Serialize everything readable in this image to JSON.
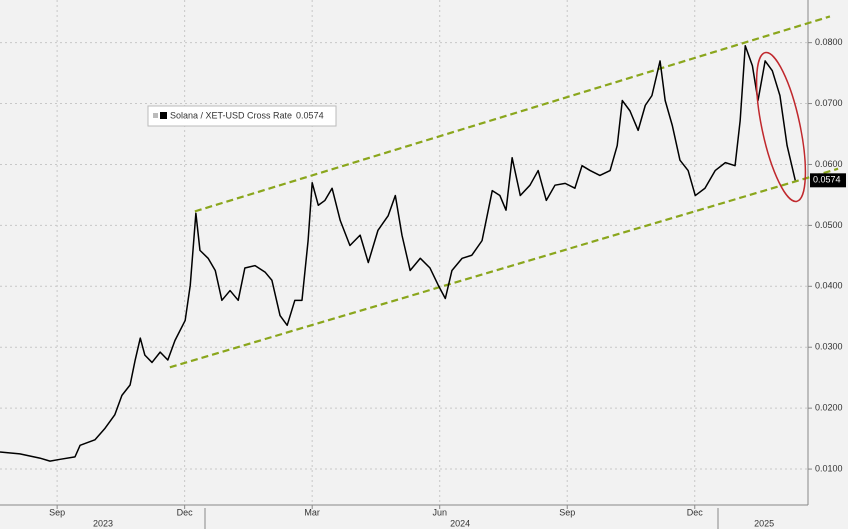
{
  "chart_data": {
    "type": "line",
    "series": [
      {
        "name": "Solana / XET-USD Cross Rate",
        "color": "#000000",
        "x": [
          2023.555,
          2023.594,
          2023.633,
          2023.653,
          2023.673,
          2023.702,
          2023.712,
          2023.741,
          2023.761,
          2023.78,
          2023.794,
          2023.81,
          2023.82,
          2023.83,
          2023.839,
          2023.853,
          2023.869,
          2023.884,
          2023.898,
          2023.918,
          2023.928,
          2023.939,
          2023.947,
          2023.963,
          2023.977,
          2023.99,
          2024.006,
          2024.022,
          2024.035,
          2024.055,
          2024.075,
          2024.088,
          2024.104,
          2024.118,
          2024.133,
          2024.147,
          2024.159,
          2024.167,
          2024.179,
          2024.192,
          2024.206,
          2024.222,
          2024.241,
          2024.261,
          2024.277,
          2024.296,
          2024.316,
          2024.33,
          2024.343,
          2024.359,
          2024.379,
          2024.398,
          2024.414,
          2024.428,
          2024.441,
          2024.461,
          2024.48,
          2024.5,
          2024.52,
          2024.535,
          2024.547,
          2024.559,
          2024.575,
          2024.594,
          2024.61,
          2024.626,
          2024.643,
          2024.663,
          2024.682,
          2024.696,
          2024.712,
          2024.731,
          2024.751,
          2024.765,
          2024.775,
          2024.79,
          2024.806,
          2024.82,
          2024.833,
          2024.849,
          2024.859,
          2024.873,
          2024.888,
          2024.904,
          2024.918,
          2024.937,
          2024.957,
          2024.977,
          2024.996,
          2025.006,
          2025.016,
          2025.03,
          2025.041,
          2025.055,
          2025.069,
          2025.084,
          2025.098,
          2025.114
        ],
        "values": [
          0.0128,
          0.0125,
          0.0118,
          0.0113,
          0.0116,
          0.012,
          0.0139,
          0.0148,
          0.0167,
          0.0189,
          0.0221,
          0.0238,
          0.0279,
          0.0315,
          0.0287,
          0.0275,
          0.0292,
          0.0279,
          0.0311,
          0.0344,
          0.0402,
          0.052,
          0.0459,
          0.0446,
          0.0426,
          0.0377,
          0.0393,
          0.0377,
          0.043,
          0.0434,
          0.0423,
          0.041,
          0.0352,
          0.0336,
          0.0377,
          0.0377,
          0.0475,
          0.057,
          0.0533,
          0.0541,
          0.0561,
          0.0508,
          0.0467,
          0.0484,
          0.0439,
          0.0492,
          0.0516,
          0.0549,
          0.0484,
          0.0426,
          0.0446,
          0.043,
          0.0402,
          0.038,
          0.0426,
          0.0446,
          0.0451,
          0.0475,
          0.0557,
          0.0549,
          0.0525,
          0.0611,
          0.0549,
          0.0566,
          0.059,
          0.0541,
          0.0566,
          0.0569,
          0.0561,
          0.0598,
          0.059,
          0.0582,
          0.059,
          0.0631,
          0.0705,
          0.0688,
          0.0656,
          0.0697,
          0.0713,
          0.077,
          0.0705,
          0.0664,
          0.0607,
          0.059,
          0.0549,
          0.0561,
          0.059,
          0.0603,
          0.0598,
          0.0672,
          0.0795,
          0.0762,
          0.0705,
          0.077,
          0.0754,
          0.0713,
          0.0631,
          0.0574
        ]
      }
    ],
    "last_value_label": {
      "value": 0.0574,
      "label": "0.0574"
    },
    "trendlines": [
      {
        "x": [
          2023.888,
          2025.198
        ],
        "values": [
          0.0267,
          0.0593
        ],
        "color": "#8aa61c"
      },
      {
        "x": [
          2023.937,
          2025.182
        ],
        "values": [
          0.0523,
          0.0843
        ],
        "color": "#8aa61c"
      }
    ],
    "xlim": [
      2023.555,
      2025.139
    ],
    "xticks": [
      {
        "value": 2023.667,
        "label": "Sep"
      },
      {
        "value": 2023.917,
        "label": "Dec"
      },
      {
        "value": 2024.167,
        "label": "Mar"
      },
      {
        "value": 2024.417,
        "label": "Jun"
      },
      {
        "value": 2024.667,
        "label": "Sep"
      },
      {
        "value": 2024.917,
        "label": "Dec"
      }
    ],
    "year_labels": [
      {
        "value": 2023.757,
        "label": "2023"
      },
      {
        "value": 2024.457,
        "label": "2024"
      },
      {
        "value": 2025.053,
        "label": "2025"
      }
    ],
    "ylim": [
      0.0041,
      0.087
    ],
    "yticks": [
      {
        "value": 0.01,
        "label": "0.0100"
      },
      {
        "value": 0.02,
        "label": "0.0200"
      },
      {
        "value": 0.03,
        "label": "0.0300"
      },
      {
        "value": 0.04,
        "label": "0.0400"
      },
      {
        "value": 0.05,
        "label": "0.0500"
      },
      {
        "value": 0.06,
        "label": "0.0600"
      },
      {
        "value": 0.07,
        "label": "0.0700"
      },
      {
        "value": 0.08,
        "label": "0.0800"
      }
    ],
    "grid": true
  }
}
